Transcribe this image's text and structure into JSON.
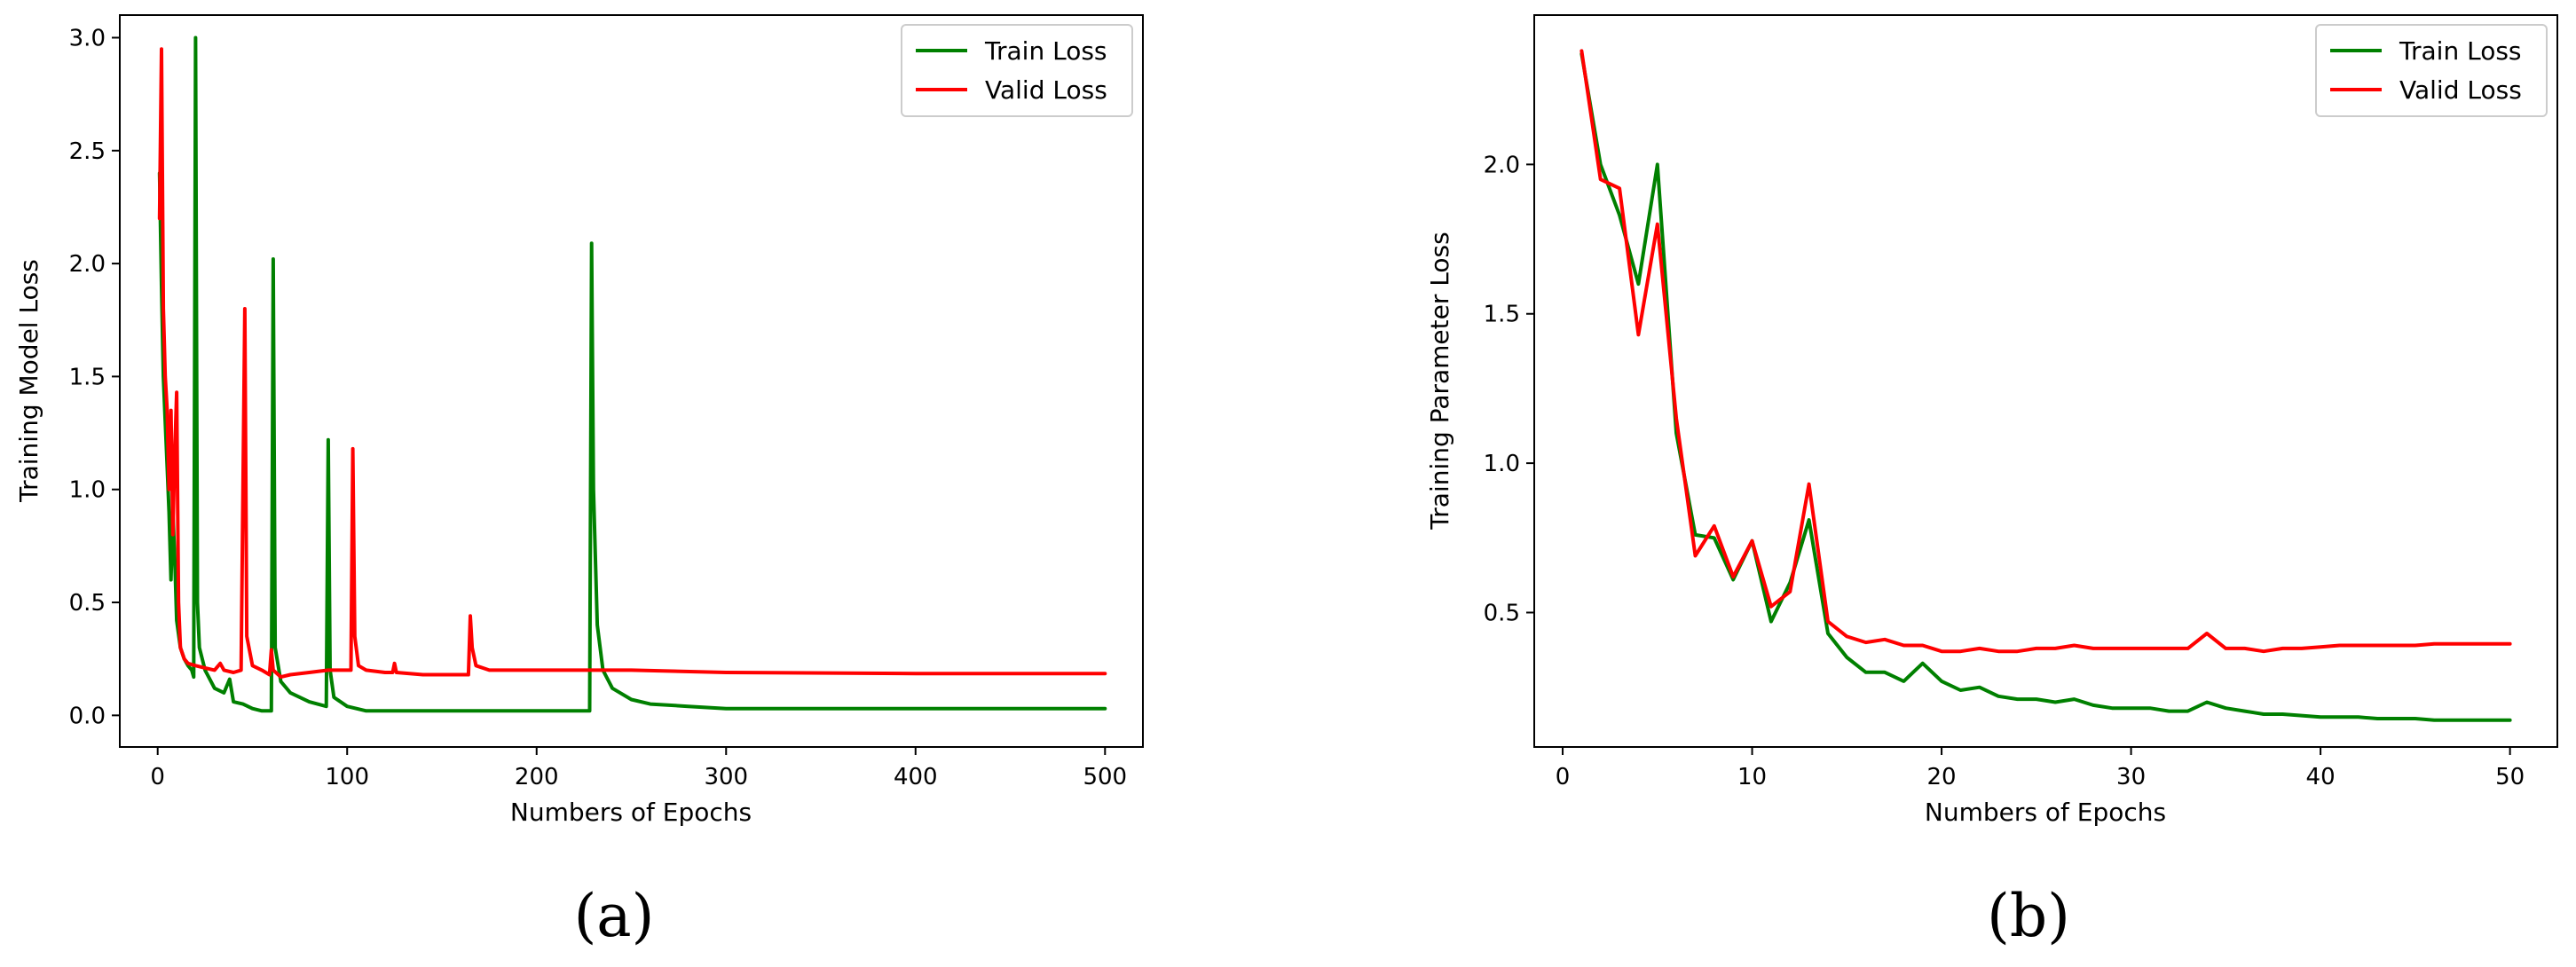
{
  "chart_data": [
    {
      "type": "line",
      "panel": "(a)",
      "xlabel": "Numbers of Epochs",
      "ylabel": "Training Model Loss",
      "xlim": [
        -20,
        520
      ],
      "ylim": [
        -0.14,
        3.1
      ],
      "xticks": [
        0,
        100,
        200,
        300,
        400,
        500
      ],
      "yticks": [
        0.0,
        0.5,
        1.0,
        1.5,
        2.0,
        2.5,
        3.0
      ],
      "ytick_decimals": 1,
      "grid": false,
      "legend_position": "top-right",
      "series": [
        {
          "name": "Train Loss",
          "color": "#008000",
          "points": [
            [
              1,
              2.4
            ],
            [
              2,
              1.9
            ],
            [
              3,
              1.5
            ],
            [
              4,
              1.3
            ],
            [
              5,
              1.1
            ],
            [
              6,
              0.9
            ],
            [
              7,
              0.6
            ],
            [
              8,
              0.9
            ],
            [
              9,
              0.7
            ],
            [
              10,
              0.42
            ],
            [
              12,
              0.3
            ],
            [
              14,
              0.25
            ],
            [
              16,
              0.22
            ],
            [
              18,
              0.2
            ],
            [
              19,
              0.17
            ],
            [
              20,
              3.0
            ],
            [
              21,
              0.5
            ],
            [
              22,
              0.3
            ],
            [
              25,
              0.2
            ],
            [
              30,
              0.12
            ],
            [
              35,
              0.1
            ],
            [
              38,
              0.16
            ],
            [
              40,
              0.06
            ],
            [
              45,
              0.05
            ],
            [
              50,
              0.03
            ],
            [
              55,
              0.02
            ],
            [
              60,
              0.02
            ],
            [
              61,
              2.02
            ],
            [
              62,
              0.3
            ],
            [
              65,
              0.15
            ],
            [
              70,
              0.1
            ],
            [
              80,
              0.06
            ],
            [
              89,
              0.04
            ],
            [
              90,
              1.22
            ],
            [
              91,
              0.2
            ],
            [
              93,
              0.08
            ],
            [
              100,
              0.04
            ],
            [
              110,
              0.02
            ],
            [
              150,
              0.02
            ],
            [
              200,
              0.02
            ],
            [
              228,
              0.02
            ],
            [
              229,
              2.09
            ],
            [
              230,
              1.0
            ],
            [
              232,
              0.4
            ],
            [
              235,
              0.2
            ],
            [
              240,
              0.12
            ],
            [
              250,
              0.07
            ],
            [
              260,
              0.05
            ],
            [
              280,
              0.04
            ],
            [
              300,
              0.03
            ],
            [
              400,
              0.03
            ],
            [
              500,
              0.03
            ]
          ]
        },
        {
          "name": "Valid Loss",
          "color": "#ff0000",
          "points": [
            [
              1,
              2.2
            ],
            [
              2,
              2.95
            ],
            [
              3,
              1.8
            ],
            [
              4,
              1.5
            ],
            [
              5,
              1.35
            ],
            [
              6,
              1.0
            ],
            [
              7,
              1.35
            ],
            [
              8,
              0.8
            ],
            [
              9,
              1.15
            ],
            [
              10,
              1.43
            ],
            [
              11,
              0.5
            ],
            [
              12,
              0.3
            ],
            [
              14,
              0.25
            ],
            [
              16,
              0.23
            ],
            [
              20,
              0.22
            ],
            [
              25,
              0.21
            ],
            [
              30,
              0.2
            ],
            [
              33,
              0.23
            ],
            [
              35,
              0.2
            ],
            [
              40,
              0.19
            ],
            [
              44,
              0.2
            ],
            [
              46,
              1.8
            ],
            [
              47,
              0.35
            ],
            [
              50,
              0.22
            ],
            [
              55,
              0.2
            ],
            [
              59,
              0.18
            ],
            [
              60,
              0.29
            ],
            [
              61,
              0.2
            ],
            [
              65,
              0.17
            ],
            [
              70,
              0.18
            ],
            [
              80,
              0.19
            ],
            [
              90,
              0.2
            ],
            [
              100,
              0.2
            ],
            [
              102,
              0.2
            ],
            [
              103,
              1.18
            ],
            [
              104,
              0.35
            ],
            [
              106,
              0.22
            ],
            [
              110,
              0.2
            ],
            [
              120,
              0.19
            ],
            [
              124,
              0.19
            ],
            [
              125,
              0.23
            ],
            [
              126,
              0.19
            ],
            [
              140,
              0.18
            ],
            [
              160,
              0.18
            ],
            [
              164,
              0.18
            ],
            [
              165,
              0.44
            ],
            [
              166,
              0.3
            ],
            [
              168,
              0.22
            ],
            [
              175,
              0.2
            ],
            [
              200,
              0.2
            ],
            [
              250,
              0.2
            ],
            [
              300,
              0.19
            ],
            [
              400,
              0.185
            ],
            [
              500,
              0.185
            ]
          ]
        }
      ]
    },
    {
      "type": "line",
      "panel": "(b)",
      "xlabel": "Numbers of Epochs",
      "ylabel": "Training Parameter Loss",
      "xlim": [
        -1.5,
        52.5
      ],
      "ylim": [
        0.05,
        2.5
      ],
      "xticks": [
        0,
        10,
        20,
        30,
        40,
        50
      ],
      "yticks": [
        0.5,
        1.0,
        1.5,
        2.0
      ],
      "ytick_decimals": 1,
      "grid": false,
      "legend_position": "top-right",
      "series": [
        {
          "name": "Train Loss",
          "color": "#008000",
          "points": [
            [
              1,
              2.37
            ],
            [
              2,
              2.0
            ],
            [
              3,
              1.83
            ],
            [
              4,
              1.6
            ],
            [
              5,
              2.0
            ],
            [
              6,
              1.1
            ],
            [
              7,
              0.76
            ],
            [
              8,
              0.75
            ],
            [
              9,
              0.61
            ],
            [
              10,
              0.74
            ],
            [
              11,
              0.47
            ],
            [
              12,
              0.6
            ],
            [
              13,
              0.81
            ],
            [
              14,
              0.43
            ],
            [
              15,
              0.35
            ],
            [
              16,
              0.3
            ],
            [
              17,
              0.3
            ],
            [
              18,
              0.27
            ],
            [
              19,
              0.33
            ],
            [
              20,
              0.27
            ],
            [
              21,
              0.24
            ],
            [
              22,
              0.25
            ],
            [
              23,
              0.22
            ],
            [
              24,
              0.21
            ],
            [
              25,
              0.21
            ],
            [
              26,
              0.2
            ],
            [
              27,
              0.21
            ],
            [
              28,
              0.19
            ],
            [
              29,
              0.18
            ],
            [
              30,
              0.18
            ],
            [
              31,
              0.18
            ],
            [
              32,
              0.17
            ],
            [
              33,
              0.17
            ],
            [
              34,
              0.2
            ],
            [
              35,
              0.18
            ],
            [
              36,
              0.17
            ],
            [
              37,
              0.16
            ],
            [
              38,
              0.16
            ],
            [
              39,
              0.155
            ],
            [
              40,
              0.15
            ],
            [
              41,
              0.15
            ],
            [
              42,
              0.15
            ],
            [
              43,
              0.145
            ],
            [
              44,
              0.145
            ],
            [
              45,
              0.145
            ],
            [
              46,
              0.14
            ],
            [
              47,
              0.14
            ],
            [
              48,
              0.14
            ],
            [
              49,
              0.14
            ],
            [
              50,
              0.14
            ]
          ]
        },
        {
          "name": "Valid Loss",
          "color": "#ff0000",
          "points": [
            [
              1,
              2.38
            ],
            [
              2,
              1.95
            ],
            [
              3,
              1.92
            ],
            [
              4,
              1.43
            ],
            [
              5,
              1.8
            ],
            [
              6,
              1.15
            ],
            [
              7,
              0.69
            ],
            [
              8,
              0.79
            ],
            [
              9,
              0.62
            ],
            [
              10,
              0.74
            ],
            [
              11,
              0.52
            ],
            [
              12,
              0.57
            ],
            [
              13,
              0.93
            ],
            [
              14,
              0.47
            ],
            [
              15,
              0.42
            ],
            [
              16,
              0.4
            ],
            [
              17,
              0.41
            ],
            [
              18,
              0.39
            ],
            [
              19,
              0.39
            ],
            [
              20,
              0.37
            ],
            [
              21,
              0.37
            ],
            [
              22,
              0.38
            ],
            [
              23,
              0.37
            ],
            [
              24,
              0.37
            ],
            [
              25,
              0.38
            ],
            [
              26,
              0.38
            ],
            [
              27,
              0.39
            ],
            [
              28,
              0.38
            ],
            [
              29,
              0.38
            ],
            [
              30,
              0.38
            ],
            [
              31,
              0.38
            ],
            [
              32,
              0.38
            ],
            [
              33,
              0.38
            ],
            [
              34,
              0.43
            ],
            [
              35,
              0.38
            ],
            [
              36,
              0.38
            ],
            [
              37,
              0.37
            ],
            [
              38,
              0.38
            ],
            [
              39,
              0.38
            ],
            [
              40,
              0.385
            ],
            [
              41,
              0.39
            ],
            [
              42,
              0.39
            ],
            [
              43,
              0.39
            ],
            [
              44,
              0.39
            ],
            [
              45,
              0.39
            ],
            [
              46,
              0.395
            ],
            [
              47,
              0.395
            ],
            [
              48,
              0.395
            ],
            [
              49,
              0.395
            ],
            [
              50,
              0.395
            ]
          ]
        }
      ]
    }
  ]
}
